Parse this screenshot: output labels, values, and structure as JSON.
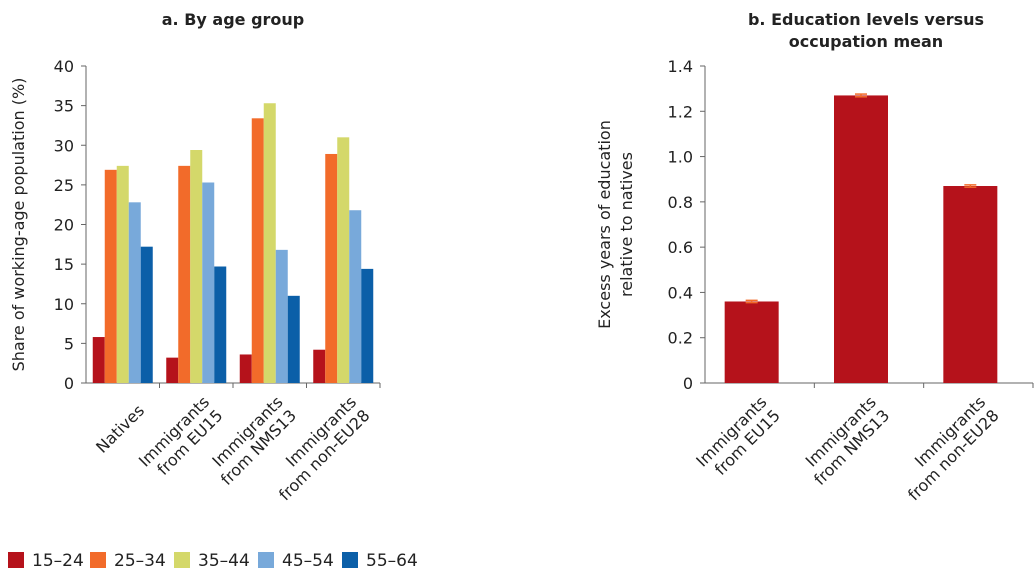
{
  "chart_data": [
    {
      "type": "bar",
      "title": "a. By age group",
      "xlabel": "",
      "ylabel": "Share of working-age population (%)",
      "ylim": [
        0,
        40
      ],
      "yticks": [
        "0",
        "5",
        "10",
        "15",
        "20",
        "25",
        "30",
        "35",
        "40"
      ],
      "categories": [
        [
          "Natives"
        ],
        [
          "Immigrants",
          "from EU15"
        ],
        [
          "Immigrants",
          "from NMS13"
        ],
        [
          "Immigrants",
          "from non-EU28"
        ]
      ],
      "series": [
        {
          "name": "15–24",
          "color": "#b5121b",
          "values": [
            5.8,
            3.2,
            3.6,
            4.2
          ]
        },
        {
          "name": "25–34",
          "color": "#f26b2a",
          "values": [
            26.9,
            27.4,
            33.4,
            28.9
          ]
        },
        {
          "name": "35–44",
          "color": "#d4d86a",
          "values": [
            27.4,
            29.4,
            35.3,
            31.0
          ]
        },
        {
          "name": "45–54",
          "color": "#78a9da",
          "values": [
            22.8,
            25.3,
            16.8,
            21.8
          ]
        },
        {
          "name": "55–64",
          "color": "#0b5fa8",
          "values": [
            17.2,
            14.7,
            11.0,
            14.4
          ]
        }
      ],
      "grid": false,
      "legend": "bottom"
    },
    {
      "type": "bar",
      "title": [
        "b. Education levels versus",
        "occupation mean"
      ],
      "xlabel": "",
      "ylabel": [
        "Excess years of education",
        "relative to natives"
      ],
      "ylim": [
        0,
        1.4
      ],
      "yticks": [
        "0",
        "0.2",
        "0.4",
        "0.6",
        "0.8",
        "1.0",
        "1.2",
        "1.4"
      ],
      "categories": [
        [
          "Immigrants",
          "from EU15"
        ],
        [
          "Immigrants",
          "from NMS13"
        ],
        [
          "Immigrants",
          "from non-EU28"
        ]
      ],
      "series": [
        {
          "color": "#b5121b",
          "error_color": "#f26b2a",
          "values": [
            0.36,
            1.27,
            0.87
          ],
          "errors": [
            0.005,
            0.006,
            0.005
          ]
        }
      ],
      "grid": false
    }
  ]
}
